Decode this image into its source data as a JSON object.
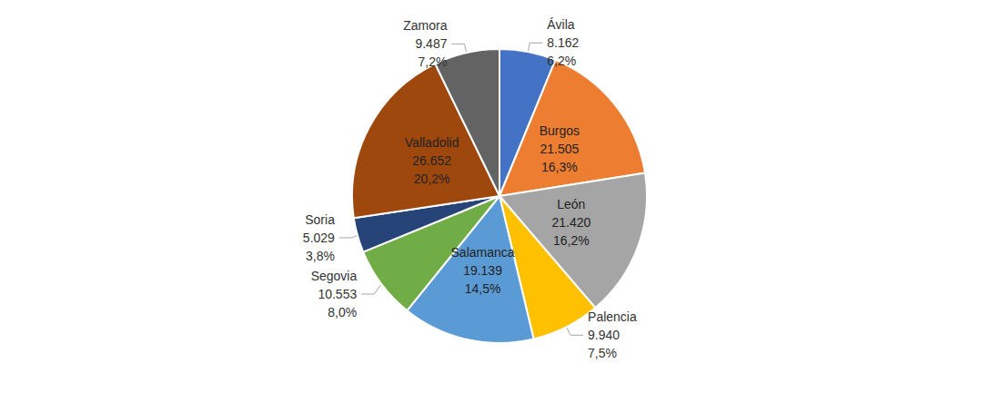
{
  "chart_data": {
    "type": "pie",
    "categories": [
      "Ávila",
      "Burgos",
      "León",
      "Palencia",
      "Salamanca",
      "Segovia",
      "Soria",
      "Valladolid",
      "Zamora"
    ],
    "values": [
      8162,
      21505,
      21420,
      9940,
      19139,
      10553,
      5029,
      26652,
      9487
    ],
    "value_labels": [
      "8.162",
      "21.505",
      "21.420",
      "9.940",
      "19.139",
      "10.553",
      "5.029",
      "26.652",
      "9.487"
    ],
    "percentages": [
      6.2,
      16.3,
      16.2,
      7.5,
      14.5,
      8.0,
      3.8,
      20.2,
      7.2
    ],
    "percentage_labels": [
      "6,2%",
      "16,3%",
      "16,2%",
      "7,5%",
      "14,5%",
      "8,0%",
      "3,8%",
      "20,2%",
      "7,2%"
    ],
    "colors": [
      "#4472c4",
      "#ed7d31",
      "#a5a5a5",
      "#ffc000",
      "#5b9bd5",
      "#70ad47",
      "#264478",
      "#9e480e",
      "#636363"
    ],
    "data_labels": true
  }
}
